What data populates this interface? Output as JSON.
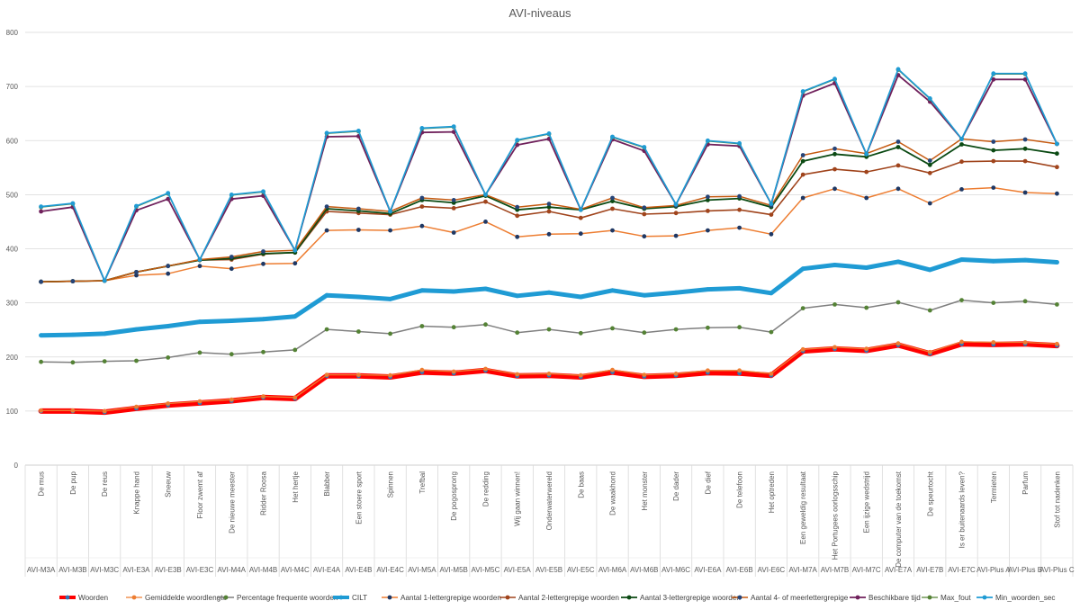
{
  "chart_data": {
    "type": "line",
    "title": "AVI-niveaus",
    "xlabel": "",
    "ylabel": "",
    "ylim": [
      0,
      800
    ],
    "yticks": [
      "0",
      "100",
      "200",
      "300",
      "400",
      "500",
      "600",
      "700",
      "800"
    ],
    "grid": true,
    "legend_position": "bottom",
    "categories": [
      "De mus",
      "De pup",
      "De reus",
      "Knappe hand",
      "Sneeuw",
      "Floor zwemt af",
      "De nieuwe meester",
      "Ridder Roosa",
      "Het hertje",
      "Blabber",
      "Een stoere sport",
      "Spinnen",
      "Trefbal",
      "De pogosprong",
      "De redding",
      "Wij gaan winnen!",
      "Onderwaterwereld",
      "De baas",
      "De waakhond",
      "Het monster",
      "De dader",
      "De dief",
      "De telefoon",
      "Het optreden",
      "Een geweldig resultaat",
      "Het Portugees oorlogsschip",
      "Een ijzige wedstrijd",
      "De computer van de toekomst",
      "De speurtocht",
      "Is er buitenaards leven?",
      "Termieten",
      "Parfum",
      "Stof tot nadenken"
    ],
    "levels": [
      "AVI-M3A",
      "AVI-M3B",
      "AVI-M3C",
      "AVI-E3A",
      "AVI-E3B",
      "AVI-E3C",
      "AVI-M4A",
      "AVI-M4B",
      "AVI-M4C",
      "AVI-E4A",
      "AVI-E4B",
      "AVI-E4C",
      "AVI-M5A",
      "AVI-M5B",
      "AVI-M5C",
      "AVI-E5A",
      "AVI-E5B",
      "AVI-E5C",
      "AVI-M6A",
      "AVI-M6B",
      "AVI-M6C",
      "AVI-E6A",
      "AVI-E6B",
      "AVI-E6C",
      "AVI-M7A",
      "AVI-M7B",
      "AVI-M7C",
      "AVI-E7A",
      "AVI-E7B",
      "AVI-E7C",
      "AVI-Plus A",
      "AVI-Plus B",
      "AVI-Plus C"
    ],
    "series": [
      {
        "name": "Woorden",
        "color": "#ff0000",
        "marker": "#2e75b6",
        "width": 6,
        "values": [
          100,
          100,
          98,
          105,
          111,
          115,
          119,
          125,
          123,
          165,
          165,
          163,
          172,
          170,
          175,
          165,
          166,
          163,
          172,
          164,
          166,
          171,
          170,
          166,
          211,
          215,
          212,
          222,
          206,
          224,
          223,
          224,
          221
        ]
      },
      {
        "name": "Gemiddelde woordlengte",
        "color": "#ed7d31",
        "marker": "#ed7d31",
        "width": 1.3,
        "values": [
          101,
          101,
          100,
          108,
          114,
          118,
          121,
          127,
          125,
          167,
          167,
          166,
          176,
          173,
          178,
          168,
          169,
          166,
          176,
          167,
          169,
          175,
          175,
          169,
          214,
          218,
          215,
          225,
          209,
          228,
          227,
          227,
          224
        ]
      },
      {
        "name": "Percentage frequente woorden",
        "color": "#7f7f7f",
        "marker": "#548235",
        "width": 1.5,
        "values": [
          191,
          190,
          192,
          193,
          199,
          208,
          205,
          209,
          213,
          251,
          247,
          243,
          257,
          255,
          260,
          245,
          251,
          244,
          253,
          245,
          251,
          254,
          255,
          246,
          290,
          297,
          291,
          301,
          286,
          305,
          300,
          303,
          297
        ]
      },
      {
        "name": "CILT",
        "color": "#1f9bd4",
        "marker": "#1f9bd4",
        "width": 5,
        "values": [
          240,
          241,
          243,
          251,
          257,
          265,
          267,
          270,
          275,
          314,
          311,
          307,
          323,
          321,
          326,
          313,
          319,
          311,
          323,
          314,
          319,
          325,
          327,
          318,
          363,
          370,
          365,
          376,
          361,
          380,
          377,
          379,
          375
        ]
      },
      {
        "name": "Aantal 1-lettergrepige woorden",
        "color": "#ed7d31",
        "marker": "#1f3864",
        "width": 1.5,
        "values": [
          339,
          340,
          341,
          351,
          354,
          368,
          363,
          372,
          373,
          434,
          435,
          434,
          442,
          430,
          450,
          422,
          427,
          428,
          434,
          423,
          424,
          434,
          439,
          427,
          494,
          511,
          494,
          511,
          484,
          510,
          513,
          504,
          502
        ]
      },
      {
        "name": "Aantal 2-lettergrepige woorden",
        "color": "#a0441c",
        "marker": "#a0441c",
        "width": 1.6,
        "values": [
          339,
          340,
          341,
          357,
          368,
          379,
          380,
          390,
          393,
          469,
          466,
          463,
          478,
          475,
          487,
          461,
          469,
          457,
          474,
          464,
          466,
          470,
          472,
          463,
          537,
          547,
          542,
          554,
          540,
          561,
          562,
          562,
          551
        ]
      },
      {
        "name": "Aantal 3-lettergrepige woorden",
        "color": "#0b4a13",
        "marker": "#0b4a13",
        "width": 1.8,
        "values": [
          339,
          340,
          341,
          357,
          368,
          379,
          382,
          391,
          393,
          474,
          470,
          465,
          490,
          485,
          498,
          472,
          477,
          472,
          488,
          474,
          478,
          490,
          493,
          477,
          562,
          575,
          570,
          588,
          555,
          593,
          582,
          585,
          576
        ]
      },
      {
        "name": "Aantal 4- of meerlettergrepige",
        "color": "#c55a11",
        "marker": "#264478",
        "width": 1.5,
        "values": [
          339,
          340,
          341,
          357,
          368,
          380,
          385,
          395,
          397,
          478,
          474,
          469,
          494,
          490,
          500,
          477,
          483,
          473,
          494,
          476,
          480,
          496,
          497,
          480,
          573,
          585,
          576,
          598,
          563,
          603,
          598,
          602,
          594
        ]
      },
      {
        "name": "Beschikbare tijd",
        "color": "#70215c",
        "marker": "#70215c",
        "width": 1.8,
        "values": [
          469,
          477,
          341,
          471,
          492,
          380,
          492,
          498,
          397,
          607,
          608,
          469,
          615,
          616,
          500,
          592,
          603,
          472,
          602,
          581,
          482,
          593,
          590,
          483,
          683,
          706,
          575,
          721,
          672,
          603,
          713,
          713,
          594
        ]
      },
      {
        "name": "Max_fout",
        "color": "#548235",
        "marker": "#548235",
        "width": 1.3,
        "values": [
          477,
          483,
          341,
          478,
          502,
          380,
          499,
          505,
          397,
          613,
          617,
          469,
          622,
          625,
          500,
          600,
          612,
          472,
          606,
          587,
          482,
          599,
          594,
          483,
          690,
          713,
          575,
          731,
          677,
          603,
          723,
          723,
          594
        ]
      },
      {
        "name": "Min_woorden_sec",
        "color": "#1f9bd4",
        "marker": "#1f9bd4",
        "width": 1.7,
        "values": [
          478,
          484,
          341,
          479,
          503,
          380,
          500,
          506,
          397,
          614,
          618,
          469,
          623,
          626,
          500,
          601,
          613,
          472,
          607,
          588,
          482,
          600,
          595,
          483,
          691,
          714,
          575,
          732,
          678,
          603,
          724,
          724,
          594
        ]
      }
    ]
  }
}
